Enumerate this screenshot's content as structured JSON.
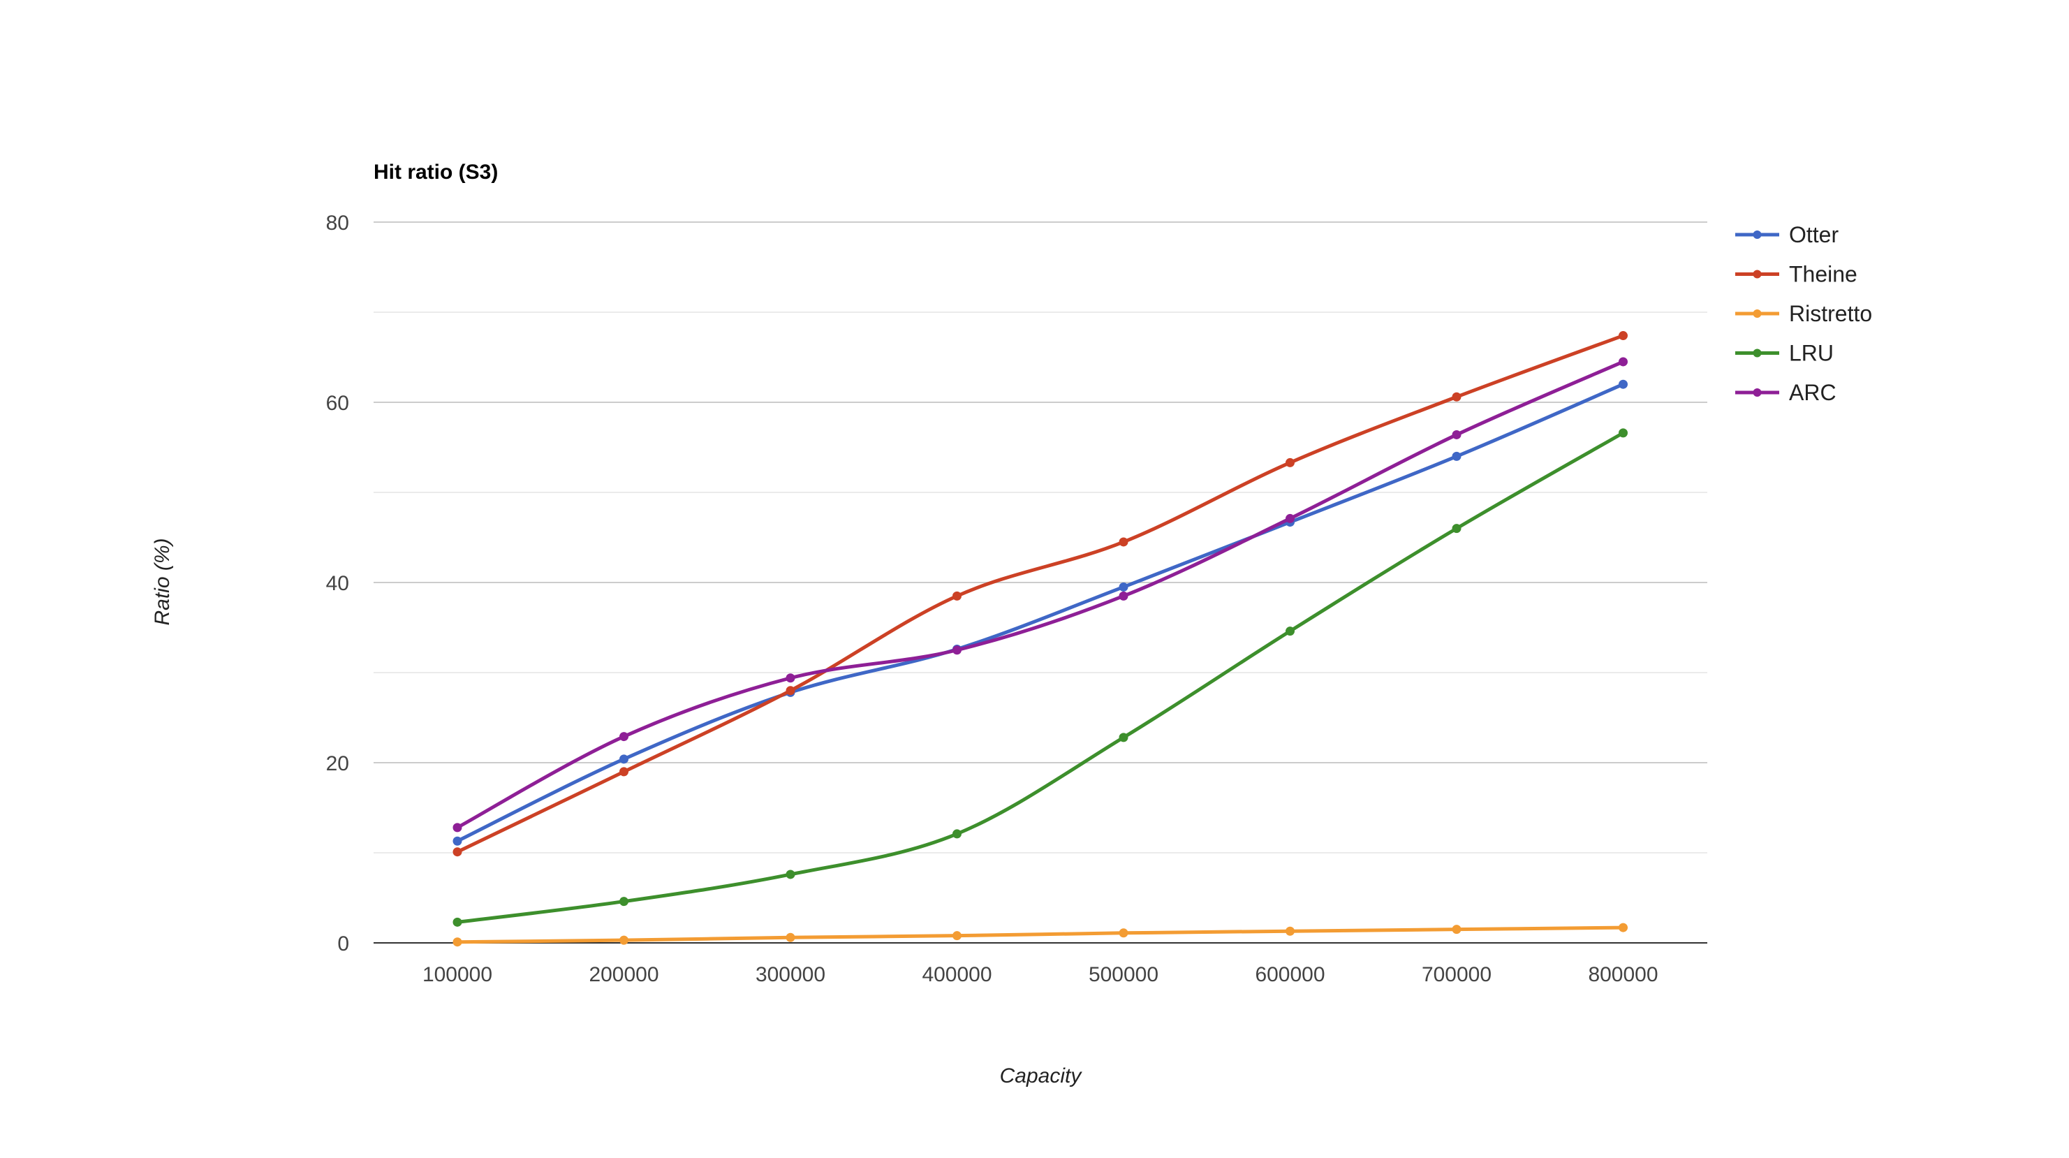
{
  "chart_data": {
    "type": "line",
    "title": "Hit ratio (S3)",
    "xlabel": "Capacity",
    "ylabel": "Ratio (%)",
    "x": [
      100000,
      200000,
      300000,
      400000,
      500000,
      600000,
      700000,
      800000
    ],
    "x_tick_labels": [
      "100000",
      "200000",
      "300000",
      "400000",
      "500000",
      "600000",
      "700000",
      "800000"
    ],
    "ylim": [
      0,
      80
    ],
    "y_ticks": [
      0,
      20,
      40,
      60,
      80
    ],
    "y_tick_labels": [
      "0",
      "20",
      "40",
      "60",
      "80"
    ],
    "grid": true,
    "legend_position": "right",
    "series": [
      {
        "name": "Otter",
        "color": "#3f67c6",
        "values": [
          11.3,
          20.4,
          27.8,
          32.6,
          39.5,
          46.7,
          54.0,
          62.0
        ]
      },
      {
        "name": "Theine",
        "color": "#cc4125",
        "values": [
          10.1,
          19.0,
          28.0,
          38.5,
          44.5,
          53.3,
          60.6,
          67.4
        ]
      },
      {
        "name": "Ristretto",
        "color": "#f39c33",
        "values": [
          0.1,
          0.3,
          0.6,
          0.8,
          1.1,
          1.3,
          1.5,
          1.7
        ]
      },
      {
        "name": "LRU",
        "color": "#3d8f2c",
        "values": [
          2.3,
          4.6,
          7.6,
          12.1,
          22.8,
          34.6,
          46.0,
          56.6
        ]
      },
      {
        "name": "ARC",
        "color": "#8e1f96",
        "values": [
          12.8,
          22.9,
          29.4,
          32.5,
          38.5,
          47.1,
          56.4,
          64.5
        ]
      }
    ]
  }
}
